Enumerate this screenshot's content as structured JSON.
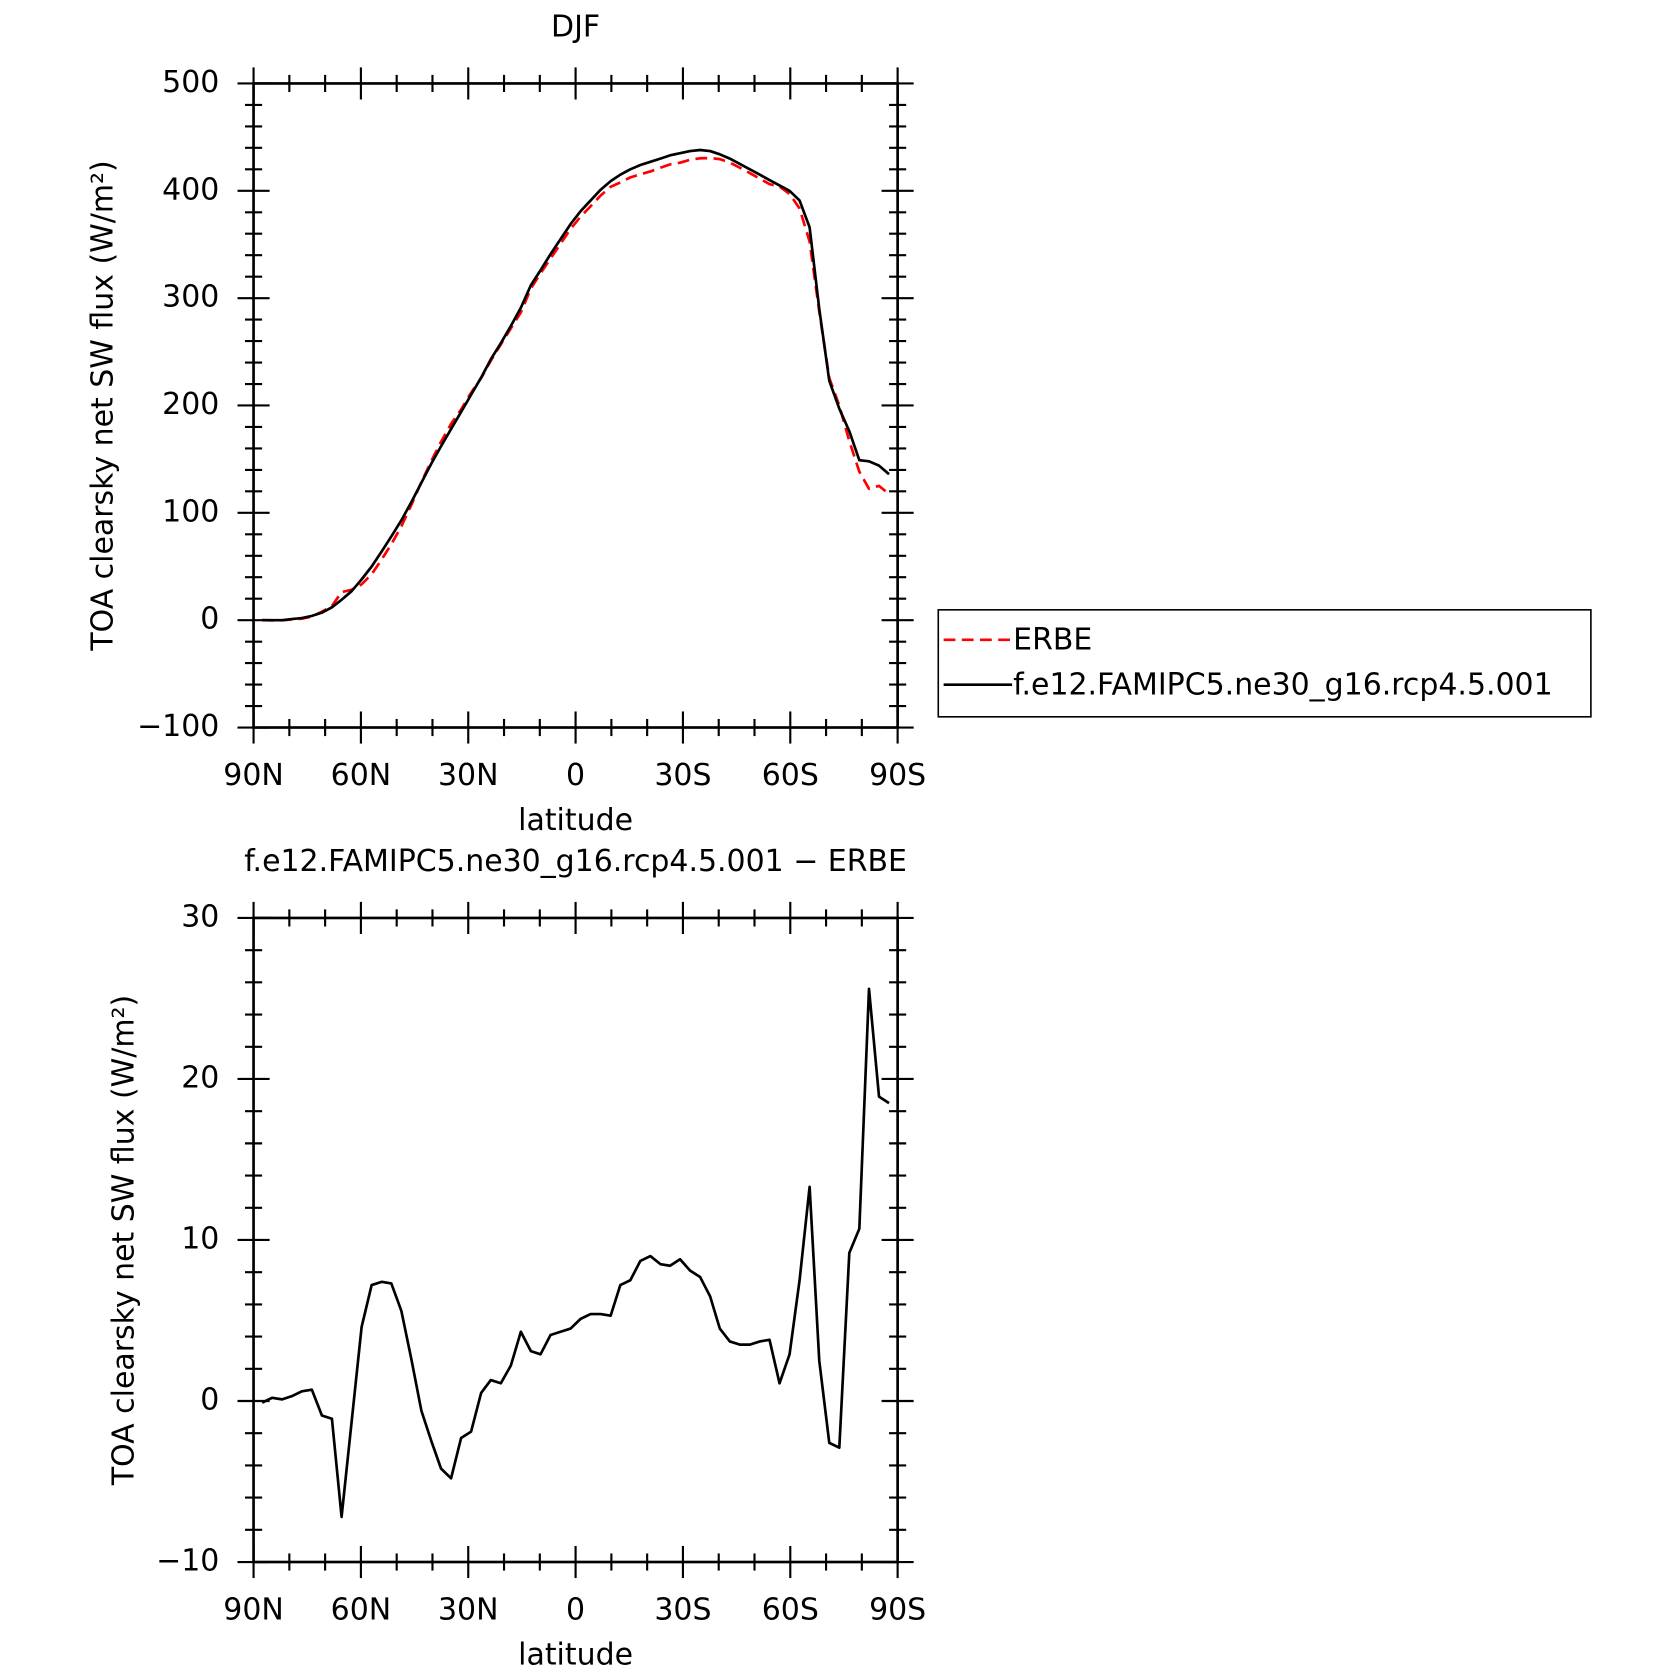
{
  "chart_data": [
    {
      "type": "line",
      "title": "DJF",
      "xlabel": "latitude",
      "ylabel": "TOA clearsky net SW flux (W/m²)",
      "x": [
        87.6,
        84.8,
        82.0,
        79.3,
        76.5,
        73.7,
        70.9,
        68.1,
        65.4,
        62.6,
        59.8,
        57.0,
        54.2,
        51.5,
        48.7,
        45.9,
        43.1,
        40.3,
        37.6,
        34.8,
        32.0,
        29.2,
        26.4,
        23.7,
        20.9,
        18.1,
        15.3,
        12.5,
        9.8,
        7.0,
        4.2,
        1.4,
        -1.4,
        -4.2,
        -7.0,
        -9.8,
        -12.5,
        -15.3,
        -18.1,
        -20.9,
        -23.7,
        -26.4,
        -29.2,
        -32.0,
        -34.8,
        -37.6,
        -40.3,
        -43.1,
        -45.9,
        -48.7,
        -51.5,
        -54.2,
        -57.0,
        -59.8,
        -62.6,
        -65.4,
        -68.1,
        -70.9,
        -73.7,
        -76.5,
        -79.3,
        -82.0,
        -84.8,
        -87.6
      ],
      "series": [
        {
          "name": "ERBE",
          "color": "#ff0000",
          "dash": true,
          "values": [
            0.1,
            -0.2,
            -0.1,
            0.7,
            1.4,
            3.3,
            7.9,
            13.1,
            26.2,
            28.3,
            33.4,
            42.8,
            56.6,
            70.7,
            87.4,
            107.4,
            128.6,
            148.5,
            166.2,
            182.8,
            196.3,
            211.9,
            225.5,
            241.7,
            256.9,
            271.8,
            286.7,
            308.9,
            323.1,
            336.9,
            350.7,
            364.5,
            375.9,
            385.6,
            395.6,
            403.7,
            407.8,
            412.5,
            415.3,
            418.0,
            421.5,
            424.6,
            426.2,
            428.9,
            430.3,
            430.5,
            429.5,
            426.3,
            421.5,
            416.5,
            411.3,
            406.2,
            403.9,
            397.1,
            383.5,
            352.7,
            287.5,
            225.6,
            199.9,
            166.8,
            138.3,
            122.4,
            125.1,
            117.5
          ]
        },
        {
          "name": "f.e12.FAMIPC5.ne30_g16.rcp4.5.001",
          "color": "#000000",
          "dash": false,
          "values": [
            0,
            0,
            0,
            1,
            2,
            4,
            7,
            12,
            19,
            27,
            38,
            50,
            64,
            78,
            93,
            110,
            128,
            146,
            162,
            178,
            194,
            210,
            226,
            243,
            258,
            274,
            291,
            312,
            326,
            341,
            355,
            369,
            381,
            391,
            401,
            409,
            415,
            420,
            424,
            427,
            430,
            433,
            435,
            437,
            438,
            437,
            434,
            430,
            425,
            420,
            415,
            410,
            405,
            400,
            391,
            366,
            290,
            223,
            197,
            176,
            149,
            148,
            144,
            136
          ]
        }
      ],
      "xlim": [
        90,
        -90
      ],
      "xticks": [
        {
          "value": 90,
          "label": "90N"
        },
        {
          "value": 60,
          "label": "60N"
        },
        {
          "value": 30,
          "label": "30N"
        },
        0,
        {
          "value": -30,
          "label": "30S"
        },
        {
          "value": -60,
          "label": "60S"
        },
        {
          "value": -90,
          "label": "90S"
        }
      ],
      "xminorticks": [
        80,
        70,
        50,
        40,
        20,
        10,
        -10,
        -20,
        -40,
        -50,
        -70,
        -80
      ],
      "ylim": [
        -100,
        500
      ],
      "yticks": [
        {
          "value": -100,
          "label": "−100"
        },
        0,
        100,
        200,
        300,
        400,
        500
      ],
      "yminorticks": [
        -80,
        -60,
        -40,
        -20,
        20,
        40,
        60,
        80,
        120,
        140,
        160,
        180,
        220,
        240,
        260,
        280,
        320,
        340,
        360,
        380,
        420,
        440,
        460,
        480
      ],
      "legend": "right"
    },
    {
      "type": "line",
      "title": "f.e12.FAMIPC5.ne30_g16.rcp4.5.001 − ERBE",
      "xlabel": "latitude",
      "ylabel": "TOA clearsky net SW flux (W/m²)",
      "x": [
        87.6,
        84.8,
        82.0,
        79.3,
        76.5,
        73.7,
        70.9,
        68.1,
        65.4,
        62.6,
        59.8,
        57.0,
        54.2,
        51.5,
        48.7,
        45.9,
        43.1,
        40.3,
        37.6,
        34.8,
        32.0,
        29.2,
        26.4,
        23.7,
        20.9,
        18.1,
        15.3,
        12.5,
        9.8,
        7.0,
        4.2,
        1.4,
        -1.4,
        -4.2,
        -7.0,
        -9.8,
        -12.5,
        -15.3,
        -18.1,
        -20.9,
        -23.7,
        -26.4,
        -29.2,
        -32.0,
        -34.8,
        -37.6,
        -40.3,
        -43.1,
        -45.9,
        -48.7,
        -51.5,
        -54.2,
        -57.0,
        -59.8,
        -62.6,
        -65.4,
        -68.1,
        -70.9,
        -73.7,
        -76.5,
        -79.3,
        -82.0,
        -84.8,
        -87.6
      ],
      "color": "#000000",
      "values": [
        -0.1,
        0.2,
        0.1,
        0.3,
        0.6,
        0.7,
        -0.9,
        -1.1,
        -7.2,
        -1.3,
        4.6,
        7.2,
        7.4,
        7.3,
        5.6,
        2.6,
        -0.6,
        -2.5,
        -4.2,
        -4.8,
        -2.3,
        -1.9,
        0.5,
        1.3,
        1.1,
        2.2,
        4.3,
        3.1,
        2.9,
        4.1,
        4.3,
        4.5,
        5.1,
        5.4,
        5.4,
        5.3,
        7.2,
        7.5,
        8.7,
        9.0,
        8.5,
        8.4,
        8.8,
        8.1,
        7.7,
        6.5,
        4.5,
        3.7,
        3.5,
        3.5,
        3.7,
        3.8,
        1.1,
        2.9,
        7.5,
        13.3,
        2.5,
        -2.6,
        -2.9,
        9.2,
        10.7,
        25.6,
        18.9,
        18.5
      ],
      "xlim": [
        90,
        -90
      ],
      "xticks": [
        {
          "value": 90,
          "label": "90N"
        },
        {
          "value": 60,
          "label": "60N"
        },
        {
          "value": 30,
          "label": "30N"
        },
        0,
        {
          "value": -30,
          "label": "30S"
        },
        {
          "value": -60,
          "label": "60S"
        },
        {
          "value": -90,
          "label": "90S"
        }
      ],
      "xminorticks": [
        80,
        70,
        50,
        40,
        20,
        10,
        -10,
        -20,
        -40,
        -50,
        -70,
        -80
      ],
      "ylim": [
        -10,
        30
      ],
      "yticks": [
        {
          "value": -10,
          "label": "−10"
        },
        0,
        10,
        20,
        30
      ],
      "yminorticks": [
        -8,
        -6,
        -4,
        -2,
        2,
        4,
        6,
        8,
        12,
        14,
        16,
        18,
        22,
        24,
        26,
        28
      ]
    }
  ]
}
